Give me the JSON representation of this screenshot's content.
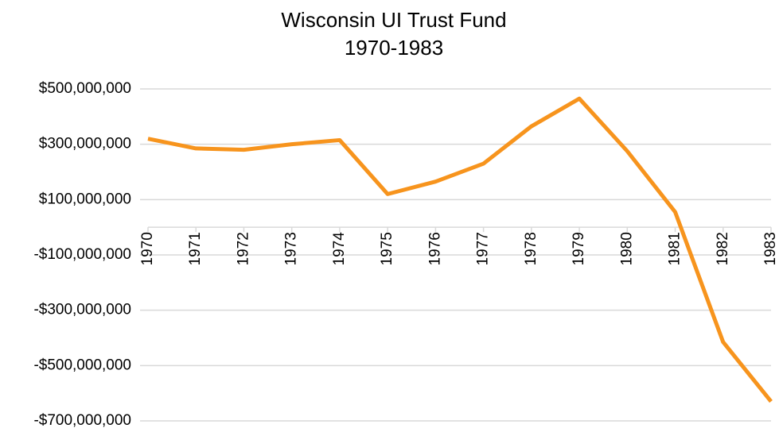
{
  "chart_data": {
    "type": "line",
    "title": "Wisconsin UI Trust Fund",
    "subtitle": "1970-1983",
    "categories": [
      "1970",
      "1971",
      "1972",
      "1973",
      "1974",
      "1975",
      "1976",
      "1977",
      "1978",
      "1979",
      "1980",
      "1981",
      "1982",
      "1983"
    ],
    "series": [
      {
        "name": "Wisconsin UI Trust Fund",
        "color": "#f7941d",
        "values": [
          320000000,
          285000000,
          280000000,
          300000000,
          315000000,
          120000000,
          165000000,
          230000000,
          365000000,
          465000000,
          275000000,
          55000000,
          -415000000,
          -630000000
        ]
      }
    ],
    "ylim": [
      -700000000,
      500000000
    ],
    "yticks": [
      {
        "value": -700000000,
        "label": "-$700,000,000"
      },
      {
        "value": -500000000,
        "label": "-$500,000,000"
      },
      {
        "value": -300000000,
        "label": "-$300,000,000"
      },
      {
        "value": -100000000,
        "label": "-$100,000,000"
      },
      {
        "value": 100000000,
        "label": "$100,000,000"
      },
      {
        "value": 300000000,
        "label": "$300,000,000"
      },
      {
        "value": 500000000,
        "label": "$500,000,000"
      }
    ],
    "grid": true
  }
}
